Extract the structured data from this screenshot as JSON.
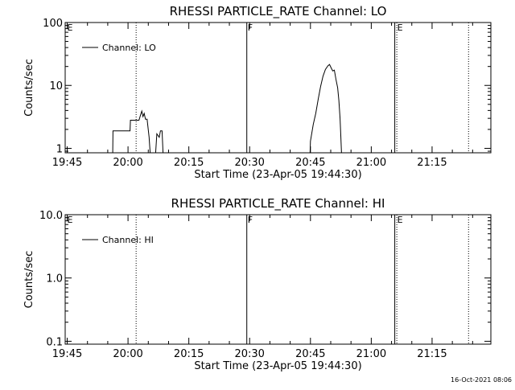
{
  "timestamp": "16-Oct-2021 08:06",
  "chart_data": [
    {
      "type": "line",
      "title": "RHESSI PARTICLE_RATE Channel: LO",
      "xlabel": "Start Time (23-Apr-05 19:44:30)",
      "ylabel": "Counts/sec",
      "x_unit": "minutes after 19:44:30",
      "xlim": [
        0,
        105
      ],
      "x_ticks": [
        "19:45",
        "20:00",
        "20:15",
        "20:30",
        "20:45",
        "21:00",
        "21:15"
      ],
      "y_scale": "log",
      "ylim": [
        0.85,
        100
      ],
      "y_ticks": [
        "1",
        "10",
        "100"
      ],
      "legend": "Channel: LO",
      "legend_position": "top-left",
      "flag_labels": [
        {
          "text": "E",
          "x": 0.3
        },
        {
          "text": "F",
          "x": 44.8
        },
        {
          "text": "E",
          "x": 81.7
        }
      ],
      "solid_lines_x": [
        44.8,
        81.3
      ],
      "dotted_lines_x": [
        17.5,
        81.8,
        99.5
      ],
      "series": [
        {
          "name": "Channel: LO",
          "points": [
            [
              11.7,
              0.5
            ],
            [
              11.8,
              1.9
            ],
            [
              16.0,
              1.9
            ],
            [
              16.1,
              2.8
            ],
            [
              18.2,
              2.8
            ],
            [
              18.6,
              3.4
            ],
            [
              18.9,
              3.9
            ],
            [
              19.2,
              3.2
            ],
            [
              19.5,
              3.6
            ],
            [
              19.8,
              2.9
            ],
            [
              20.2,
              2.9
            ],
            [
              20.7,
              1.5
            ],
            [
              21.2,
              0.5
            ],
            [
              null,
              null
            ],
            [
              22.1,
              0.5
            ],
            [
              22.6,
              1.7
            ],
            [
              23.2,
              1.5
            ],
            [
              23.5,
              1.9
            ],
            [
              23.9,
              1.9
            ],
            [
              24.3,
              0.5
            ],
            [
              null,
              null
            ],
            [
              60.3,
              0.5
            ],
            [
              60.5,
              1.3
            ],
            [
              61.2,
              2.4
            ],
            [
              61.8,
              3.6
            ],
            [
              62.4,
              6.0
            ],
            [
              63.0,
              9.6
            ],
            [
              63.6,
              14.0
            ],
            [
              64.2,
              18.0
            ],
            [
              64.8,
              20.5
            ],
            [
              65.2,
              21.5
            ],
            [
              65.6,
              19.0
            ],
            [
              66.0,
              17.0
            ],
            [
              66.4,
              17.5
            ],
            [
              66.8,
              12.5
            ],
            [
              67.2,
              9.2
            ],
            [
              67.5,
              5.8
            ],
            [
              67.8,
              3.0
            ],
            [
              68.0,
              1.5
            ],
            [
              68.3,
              0.5
            ]
          ]
        }
      ]
    },
    {
      "type": "line",
      "title": "RHESSI PARTICLE_RATE Channel: HI",
      "xlabel": "Start Time (23-Apr-05 19:44:30)",
      "ylabel": "Counts/sec",
      "x_unit": "minutes after 19:44:30",
      "xlim": [
        0,
        105
      ],
      "x_ticks": [
        "19:45",
        "20:00",
        "20:15",
        "20:30",
        "20:45",
        "21:00",
        "21:15"
      ],
      "y_scale": "log",
      "ylim": [
        0.09,
        10
      ],
      "y_ticks": [
        "0.1",
        "1.0",
        "10.0"
      ],
      "legend": "Channel: HI",
      "legend_position": "top-left",
      "flag_labels": [
        {
          "text": "E",
          "x": 0.3
        },
        {
          "text": "F",
          "x": 44.8
        },
        {
          "text": "E",
          "x": 81.7
        }
      ],
      "solid_lines_x": [
        44.8,
        81.3
      ],
      "dotted_lines_x": [
        17.5,
        81.8,
        99.5
      ],
      "series": [
        {
          "name": "Channel: HI",
          "points": []
        }
      ]
    }
  ]
}
